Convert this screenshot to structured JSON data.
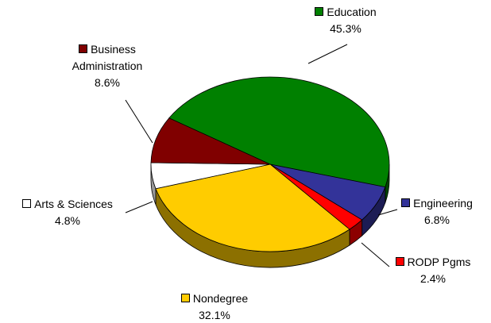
{
  "chart_data": {
    "type": "pie3d",
    "categories": [
      "Education",
      "Engineering",
      "RODP Pgms",
      "Nondegree",
      "Arts & Sciences",
      "Business Administration"
    ],
    "values": [
      45.3,
      6.8,
      2.4,
      32.1,
      4.8,
      8.6
    ],
    "value_labels": [
      "45.3%",
      "6.8%",
      "2.4%",
      "32.1%",
      "4.8%",
      "8.6%"
    ],
    "colors": [
      "#008000",
      "#333399",
      "#ff0000",
      "#ffcc00",
      "#ffffff",
      "#800000"
    ]
  }
}
